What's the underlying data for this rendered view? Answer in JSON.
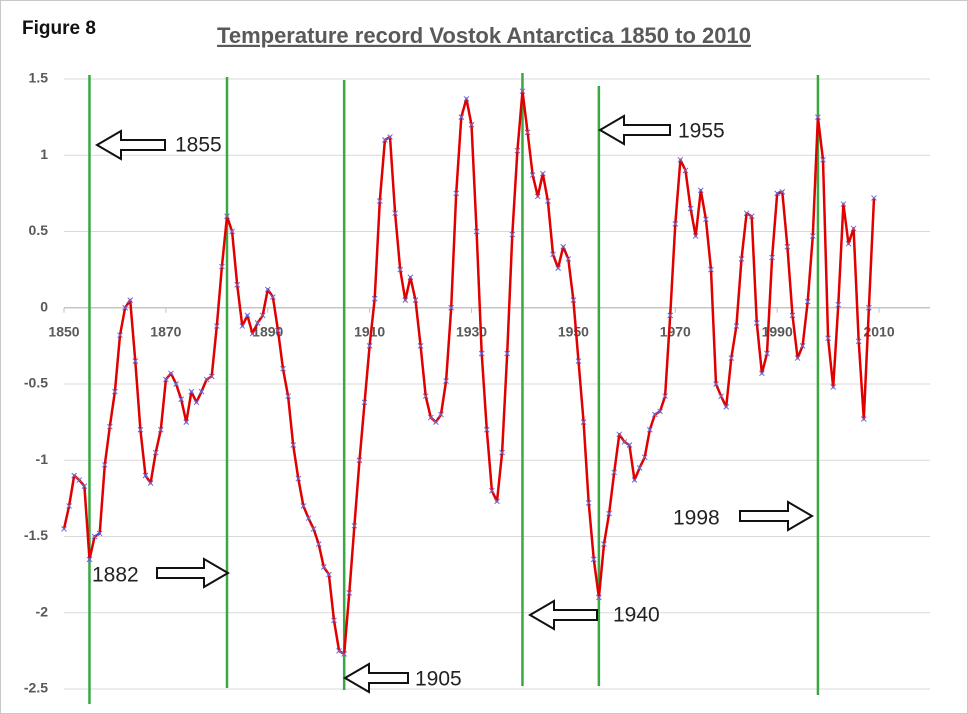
{
  "chart_data": {
    "type": "line",
    "figure_label": "Figure 8",
    "title": "Temperature record Vostok Antarctica 1850 to 2010",
    "color": "#e00000",
    "marker_color": "#6a6ad8",
    "x": [
      1850,
      1851,
      1852,
      1853,
      1854,
      1855,
      1856,
      1857,
      1858,
      1859,
      1860,
      1861,
      1862,
      1863,
      1864,
      1865,
      1866,
      1867,
      1868,
      1869,
      1870,
      1871,
      1872,
      1873,
      1874,
      1875,
      1876,
      1877,
      1878,
      1879,
      1880,
      1881,
      1882,
      1883,
      1884,
      1885,
      1886,
      1887,
      1888,
      1889,
      1890,
      1891,
      1892,
      1893,
      1894,
      1895,
      1896,
      1897,
      1898,
      1899,
      1900,
      1901,
      1902,
      1903,
      1904,
      1905,
      1906,
      1907,
      1908,
      1909,
      1910,
      1911,
      1912,
      1913,
      1914,
      1915,
      1916,
      1917,
      1918,
      1919,
      1920,
      1921,
      1922,
      1923,
      1924,
      1925,
      1926,
      1927,
      1928,
      1929,
      1930,
      1931,
      1932,
      1933,
      1934,
      1935,
      1936,
      1937,
      1938,
      1939,
      1940,
      1941,
      1942,
      1943,
      1944,
      1945,
      1946,
      1947,
      1948,
      1949,
      1950,
      1951,
      1952,
      1953,
      1954,
      1955,
      1956,
      1957,
      1958,
      1959,
      1960,
      1961,
      1962,
      1963,
      1964,
      1965,
      1966,
      1967,
      1968,
      1969,
      1970,
      1971,
      1972,
      1973,
      1974,
      1975,
      1976,
      1977,
      1978,
      1979,
      1980,
      1981,
      1982,
      1983,
      1984,
      1985,
      1986,
      1987,
      1988,
      1989,
      1990,
      1991,
      1992,
      1993,
      1994,
      1995,
      1996,
      1997,
      1998,
      1999,
      2000,
      2001,
      2002,
      2003,
      2004,
      2005,
      2006,
      2007,
      2008,
      2009
    ],
    "values": [
      -1.45,
      -1.3,
      -1.1,
      -1.13,
      -1.17,
      -1.65,
      -1.5,
      -1.48,
      -1.03,
      -0.78,
      -0.55,
      -0.18,
      0.0,
      0.05,
      -0.35,
      -0.8,
      -1.1,
      -1.15,
      -0.95,
      -0.8,
      -0.47,
      -0.43,
      -0.5,
      -0.6,
      -0.75,
      -0.55,
      -0.62,
      -0.55,
      -0.47,
      -0.45,
      -0.12,
      0.27,
      0.6,
      0.5,
      0.15,
      -0.12,
      -0.05,
      -0.17,
      -0.1,
      -0.05,
      0.12,
      0.07,
      -0.15,
      -0.4,
      -0.58,
      -0.9,
      -1.12,
      -1.3,
      -1.38,
      -1.45,
      -1.55,
      -1.7,
      -1.75,
      -2.05,
      -2.25,
      -2.27,
      -1.87,
      -1.43,
      -1.0,
      -0.62,
      -0.25,
      0.06,
      0.7,
      1.1,
      1.12,
      0.62,
      0.25,
      0.05,
      0.2,
      0.05,
      -0.25,
      -0.58,
      -0.72,
      -0.75,
      -0.7,
      -0.48,
      0.0,
      0.75,
      1.25,
      1.37,
      1.2,
      0.5,
      -0.3,
      -0.8,
      -1.2,
      -1.27,
      -0.95,
      -0.3,
      0.48,
      1.03,
      1.42,
      1.15,
      0.87,
      0.73,
      0.88,
      0.7,
      0.35,
      0.26,
      0.4,
      0.32,
      0.05,
      -0.35,
      -0.75,
      -1.28,
      -1.65,
      -1.9,
      -1.55,
      -1.35,
      -1.08,
      -0.83,
      -0.88,
      -0.9,
      -1.13,
      -1.05,
      -0.98,
      -0.8,
      -0.7,
      -0.68,
      -0.58,
      -0.05,
      0.55,
      0.97,
      0.9,
      0.65,
      0.47,
      0.77,
      0.58,
      0.25,
      -0.5,
      -0.58,
      -0.65,
      -0.33,
      -0.12,
      0.32,
      0.62,
      0.6,
      -0.1,
      -0.43,
      -0.3,
      0.33,
      0.75,
      0.76,
      0.4,
      -0.05,
      -0.33,
      -0.25,
      0.04,
      0.47,
      1.25,
      0.97,
      -0.2,
      -0.52,
      0.02,
      0.68,
      0.42,
      0.52,
      -0.22,
      -0.73,
      0.0,
      0.72
    ],
    "xlim": [
      1850,
      2020
    ],
    "xticks": [
      1850,
      1870,
      1890,
      1910,
      1930,
      1950,
      1970,
      1990,
      2010
    ],
    "ylim": [
      -2.5,
      1.5
    ],
    "yticks": [
      1.5,
      1,
      0.5,
      0,
      -0.5,
      -1,
      -1.5,
      -2,
      -2.5
    ],
    "grid": true,
    "annotation_color": "#3aa842",
    "annotations": [
      {
        "label": "1855",
        "x": 1855
      },
      {
        "label": "1882",
        "x": 1882
      },
      {
        "label": "1905",
        "x": 1905
      },
      {
        "label": "1940",
        "x": 1940
      },
      {
        "label": "1955",
        "x": 1955
      },
      {
        "label": "1998",
        "x": 1998
      }
    ]
  }
}
